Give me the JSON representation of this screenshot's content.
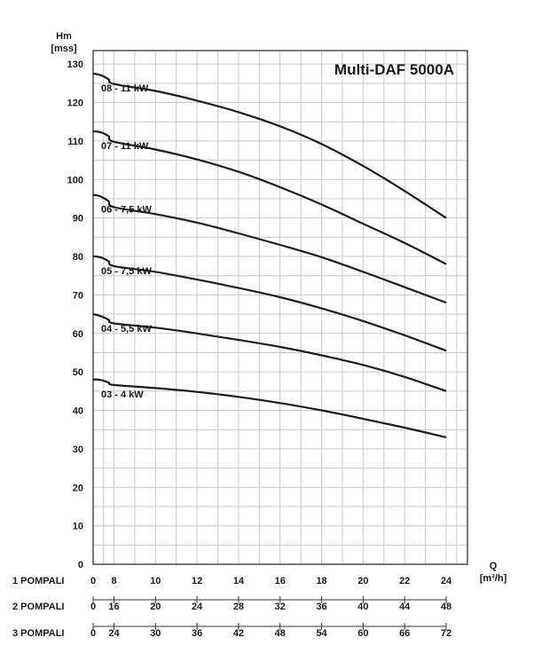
{
  "chart_data": {
    "type": "line",
    "title": "Multi-DAF 5000A",
    "ylabel_line1": "Hm",
    "ylabel_line2": "[mss]",
    "xlabel_line1": "Q",
    "xlabel_line2": "[m³/h]",
    "xlim": [
      0,
      24
    ],
    "ylim": [
      0,
      135
    ],
    "y_ticks": [
      0,
      10,
      20,
      30,
      40,
      50,
      60,
      70,
      80,
      90,
      100,
      110,
      120,
      130
    ],
    "grid": true,
    "x_scales": [
      {
        "label": "1 POMPALI",
        "ticks": [
          "0",
          "8",
          "10",
          "12",
          "14",
          "16",
          "18",
          "20",
          "22",
          "24"
        ]
      },
      {
        "label": "2 POMPALI",
        "ticks": [
          "0",
          "16",
          "20",
          "24",
          "28",
          "32",
          "36",
          "40",
          "44",
          "48"
        ]
      },
      {
        "label": "3 POMPALI",
        "ticks": [
          "0",
          "24",
          "30",
          "36",
          "42",
          "48",
          "54",
          "60",
          "66",
          "72"
        ]
      }
    ],
    "series": [
      {
        "name": "08 - 11 kW",
        "x": [
          0,
          2,
          4,
          6,
          8,
          10,
          12,
          14,
          16,
          18,
          20,
          22,
          24
        ],
        "y": [
          127.5,
          127.3,
          126.8,
          126,
          124.8,
          123,
          120.5,
          117.5,
          113.8,
          109.2,
          103.5,
          97,
          90
        ]
      },
      {
        "name": "07 - 11 kW",
        "x": [
          0,
          2,
          4,
          6,
          8,
          10,
          12,
          14,
          16,
          18,
          20,
          22,
          24
        ],
        "y": [
          112.5,
          112.4,
          112,
          111.2,
          109.8,
          107.8,
          105.2,
          102,
          98,
          93.5,
          88.5,
          83.5,
          78
        ]
      },
      {
        "name": "06 - 7,5 kW",
        "x": [
          0,
          2,
          4,
          6,
          8,
          10,
          12,
          14,
          16,
          18,
          20,
          22,
          24
        ],
        "y": [
          96,
          95.8,
          95.2,
          94.3,
          92.8,
          91,
          88.8,
          86,
          83,
          79.8,
          76,
          72,
          68
        ]
      },
      {
        "name": "05 - 7,5 kW",
        "x": [
          0,
          2,
          4,
          6,
          8,
          10,
          12,
          14,
          16,
          18,
          20,
          22,
          24
        ],
        "y": [
          80,
          79.9,
          79.5,
          78.7,
          77.5,
          76,
          74,
          71.8,
          69.4,
          66.5,
          63.2,
          59.5,
          55.5
        ]
      },
      {
        "name": "04 - 5,5 kW",
        "x": [
          0,
          2,
          4,
          6,
          8,
          10,
          12,
          14,
          16,
          18,
          20,
          22,
          24
        ],
        "y": [
          65,
          64.7,
          64.2,
          63.5,
          62.6,
          61.5,
          60,
          58.3,
          56.5,
          54.3,
          51.8,
          48.7,
          45
        ]
      },
      {
        "name": "03 - 4 kW",
        "x": [
          0,
          2,
          4,
          6,
          8,
          10,
          12,
          14,
          16,
          18,
          20,
          22,
          24
        ],
        "y": [
          48,
          48,
          47.7,
          47.2,
          46.6,
          45.8,
          44.8,
          43.5,
          41.9,
          40,
          37.8,
          35.5,
          33
        ]
      }
    ]
  }
}
